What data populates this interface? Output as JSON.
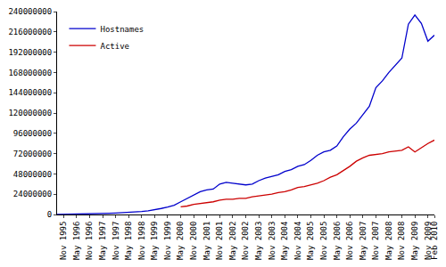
{
  "chart_data": {
    "type": "line",
    "categories": [
      null,
      "Nov 1995",
      null,
      "May 1996",
      null,
      "Nov 1996",
      null,
      "May 1997",
      null,
      "Nov 1997",
      null,
      "May 1998",
      null,
      "Nov 1998",
      null,
      "May 1999",
      null,
      "Nov 1999",
      null,
      "May 2000",
      null,
      "Nov 2000",
      null,
      "May 2001",
      null,
      "Nov 2001",
      null,
      "May 2002",
      null,
      "Nov 2002",
      null,
      "May 2003",
      null,
      "Nov 2003",
      null,
      "May 2004",
      null,
      "Nov 2004",
      null,
      "May 2005",
      null,
      "Nov 2005",
      null,
      "May 2006",
      null,
      "Nov 2006",
      null,
      "May 2007",
      null,
      "Nov 2007",
      null,
      "May 2008",
      null,
      "Nov 2008",
      null,
      "May 2009",
      null,
      "Nov 2009",
      "Feb 2010"
    ],
    "series": [
      {
        "name": "Hostnames",
        "color": "#0000cc",
        "values": [
          20000,
          100000,
          200000,
          300000,
          400000,
          600000,
          900000,
          1100000,
          1400000,
          1700000,
          2100000,
          2400000,
          2700000,
          3500000,
          4300000,
          5500000,
          7100000,
          8700000,
          11000000,
          15000000,
          19000000,
          23000000,
          27000000,
          29000000,
          30000000,
          36000000,
          38000000,
          37000000,
          36000000,
          35000000,
          36000000,
          40000000,
          43000000,
          45000000,
          47000000,
          51000000,
          53000000,
          57000000,
          59000000,
          64000000,
          70000000,
          74000000,
          76000000,
          81000000,
          92000000,
          101000000,
          108000000,
          118000000,
          128000000,
          150000000,
          158000000,
          168000000,
          176000000,
          185000000,
          225000000,
          236000000,
          226000000,
          205000000,
          212000000
        ]
      },
      {
        "name": "Active",
        "color": "#cc0000",
        "values": [
          null,
          null,
          null,
          null,
          null,
          null,
          null,
          null,
          null,
          null,
          null,
          null,
          null,
          null,
          null,
          null,
          null,
          null,
          null,
          9000000,
          10000000,
          12000000,
          13000000,
          14000000,
          15000000,
          17000000,
          18000000,
          18000000,
          19000000,
          19000000,
          21000000,
          22000000,
          23000000,
          24000000,
          26000000,
          27000000,
          29000000,
          32000000,
          33000000,
          35000000,
          37000000,
          40000000,
          44000000,
          47000000,
          52000000,
          57000000,
          63000000,
          67000000,
          70000000,
          71000000,
          72000000,
          74000000,
          75000000,
          76000000,
          80000000,
          74000000,
          79000000,
          84000000,
          88000000
        ]
      }
    ],
    "ylim": [
      0,
      240000000
    ],
    "yticks": [
      0,
      24000000,
      48000000,
      72000000,
      96000000,
      120000000,
      144000000,
      168000000,
      192000000,
      216000000,
      240000000
    ],
    "grid": false,
    "legend": "top left"
  }
}
